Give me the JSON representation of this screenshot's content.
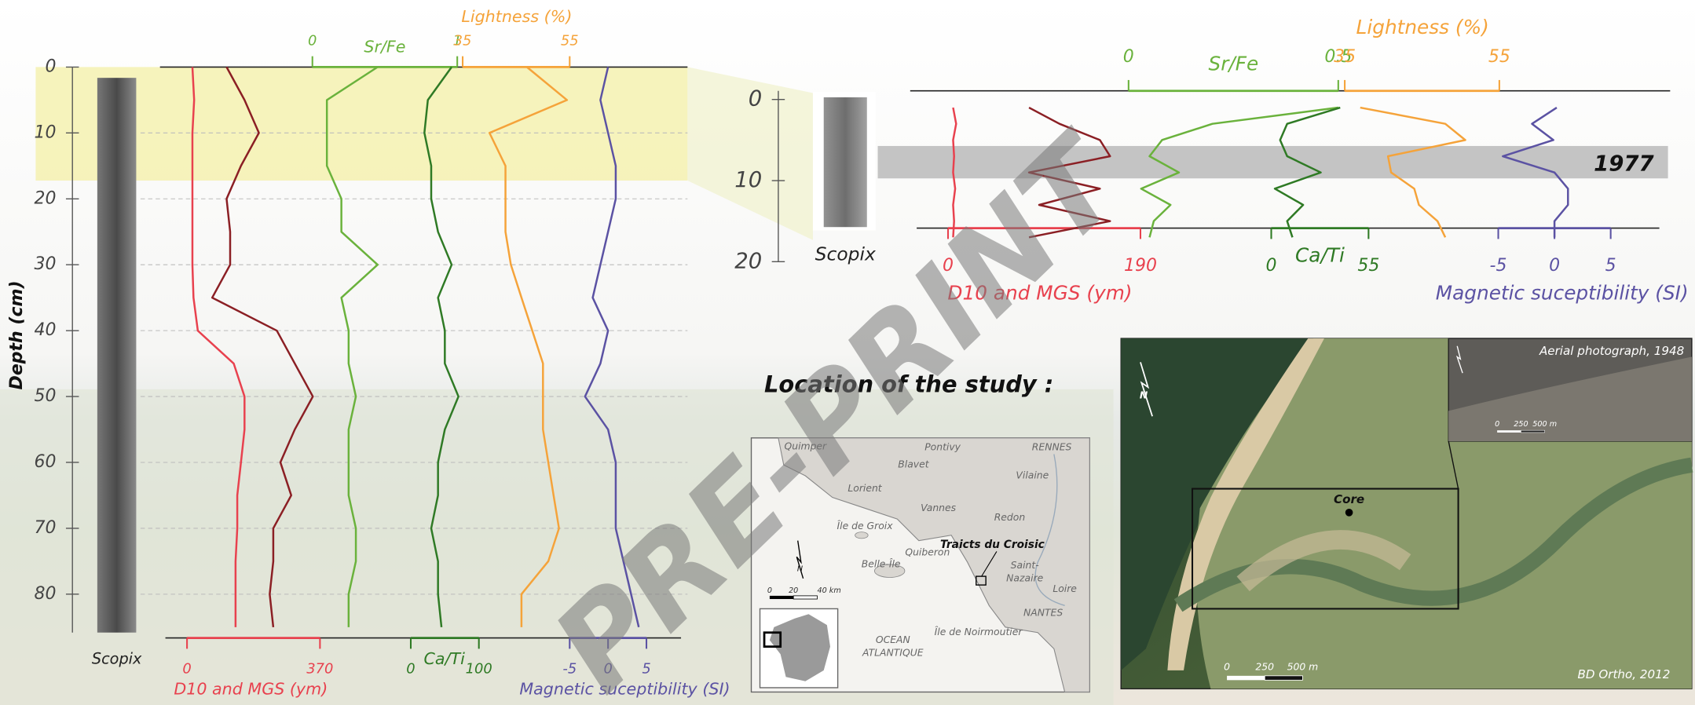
{
  "chart_data": [
    {
      "type": "line",
      "ylabel": "Depth (cm)",
      "image_label": "Scopix",
      "y_inverted": true,
      "grid": true,
      "y": [
        0,
        5,
        10,
        15,
        20,
        25,
        30,
        35,
        40,
        45,
        50,
        55,
        60,
        65,
        70,
        75,
        80,
        85
      ],
      "ylim": [
        0,
        85
      ],
      "yticks": [
        0,
        10,
        20,
        30,
        40,
        50,
        60,
        70,
        80
      ],
      "tracks": [
        {
          "label": "D10 and MGS (ym)",
          "axis": "bottom",
          "color": "#e8414e",
          "xlim": [
            0,
            370
          ],
          "xticks": [
            0,
            370
          ],
          "series": [
            {
              "color": "#e8414e",
              "values": [
                15,
                20,
                15,
                15,
                15,
                15,
                15,
                18,
                30,
                130,
                160,
                160,
                150,
                140,
                140,
                135,
                135,
                135
              ]
            },
            {
              "color": "#8b1f24",
              "values": [
                110,
                160,
                200,
                150,
                110,
                120,
                120,
                70,
                250,
                300,
                350,
                300,
                260,
                290,
                240,
                240,
                230,
                240
              ]
            }
          ]
        },
        {
          "label": "Sr/Fe",
          "axis": "top",
          "color": "#6ab23c",
          "xlim": [
            0,
            1
          ],
          "xticks": [
            0,
            1
          ],
          "series": [
            {
              "color": "#6ab23c",
              "values": [
                0.45,
                0.1,
                0.1,
                0.1,
                0.2,
                0.2,
                0.45,
                0.2,
                0.25,
                0.25,
                0.3,
                0.25,
                0.25,
                0.25,
                0.3,
                0.3,
                0.25,
                0.25
              ]
            }
          ]
        },
        {
          "label": "Ca/Ti",
          "axis": "bottom",
          "color": "#2f7a25",
          "xlim": [
            0,
            100
          ],
          "xticks": [
            0,
            100
          ],
          "series": [
            {
              "color": "#2f7a25",
              "values": [
                60,
                25,
                20,
                30,
                30,
                40,
                60,
                40,
                50,
                50,
                70,
                50,
                40,
                40,
                30,
                40,
                40,
                45
              ]
            }
          ]
        },
        {
          "label": "Lightness (%)",
          "axis": "top",
          "color": "#f5a33a",
          "xlim": [
            35,
            55
          ],
          "xticks": [
            35,
            55
          ],
          "series": [
            {
              "color": "#f5a33a",
              "values": [
                47,
                54.5,
                40,
                43,
                43,
                43,
                44,
                46,
                48,
                50,
                50,
                50,
                51,
                52,
                53,
                51,
                46,
                46
              ]
            }
          ]
        },
        {
          "label": "Magnetic suceptibility (SI)",
          "axis": "bottom",
          "color": "#5b52a3",
          "xlim": [
            -5,
            5
          ],
          "xticks": [
            -5,
            0,
            5
          ],
          "series": [
            {
              "color": "#5b52a3",
              "values": [
                0,
                -1,
                0,
                1,
                1,
                0,
                -1,
                -2,
                0,
                -1,
                -3,
                0,
                1,
                1,
                1,
                2,
                3,
                4
              ]
            }
          ]
        }
      ]
    },
    {
      "type": "line",
      "image_label": "Scopix",
      "highlight_label": "1977",
      "y_inverted": true,
      "grid": false,
      "y": [
        1,
        3,
        5,
        7,
        9,
        11,
        13,
        15,
        17
      ],
      "ylim": [
        0,
        20
      ],
      "yticks": [
        0,
        10,
        20
      ],
      "tracks": [
        {
          "label": "D10 and MGS (ym)",
          "axis": "bottom",
          "color": "#e8414e",
          "xlim": [
            0,
            190
          ],
          "xticks": [
            0,
            190
          ],
          "series": [
            {
              "color": "#e8414e",
              "values": [
                5,
                8,
                5,
                6,
                5,
                7,
                5,
                6,
                5
              ]
            },
            {
              "color": "#8b1f24",
              "values": [
                80,
                110,
                150,
                160,
                80,
                150,
                90,
                160,
                80
              ]
            }
          ]
        },
        {
          "label": "Sr/Fe",
          "axis": "top",
          "color": "#6ab23c",
          "xlim": [
            0,
            0.5
          ],
          "xticks": [
            0,
            0.5
          ],
          "series": [
            {
              "color": "#6ab23c",
              "values": [
                0.5,
                0.2,
                0.08,
                0.05,
                0.12,
                0.03,
                0.1,
                0.06,
                0.05
              ]
            }
          ]
        },
        {
          "label": "Ca/Ti",
          "axis": "bottom",
          "color": "#2f7a25",
          "xlim": [
            0,
            55
          ],
          "xticks": [
            0,
            55
          ],
          "series": [
            {
              "color": "#2f7a25",
              "values": [
                39,
                9,
                5,
                9,
                28,
                2,
                18,
                9,
                12
              ]
            }
          ]
        },
        {
          "label": "Lightness (%)",
          "axis": "top",
          "color": "#f5a33a",
          "xlim": [
            35,
            55
          ],
          "xticks": [
            35,
            55
          ],
          "series": [
            {
              "color": "#f5a33a",
              "values": [
                37,
                48,
                50.6,
                40.6,
                41,
                44,
                44.6,
                47,
                48
              ]
            }
          ]
        },
        {
          "label": "Magnetic suceptibility (SI)",
          "axis": "bottom",
          "color": "#5b52a3",
          "xlim": [
            -5,
            5
          ],
          "xticks": [
            -5,
            0,
            5
          ],
          "series": [
            {
              "color": "#5b52a3",
              "values": [
                0.2,
                -2,
                -0.1,
                -4.6,
                0,
                1.2,
                1.2,
                0,
                0
              ]
            }
          ]
        }
      ]
    }
  ],
  "watermark": "PRE-PRINT",
  "location": {
    "title": "Location of the study :",
    "map_labels": [
      "Quimper",
      "Pontivy",
      "RENNES",
      "Lorient",
      "Vannes",
      "Redon",
      "Blavet",
      "Vilaine",
      "Île de Groix",
      "Belle-Île",
      "Quiberon",
      "Traicts du Croisic",
      "Saint-",
      "Nazaire",
      "NANTES",
      "OCEAN",
      "ATLANTIQUE",
      "Île de Noirmoutier",
      "Loire"
    ],
    "scale_labels": [
      "0",
      "20",
      "40 km"
    ],
    "north": "N"
  },
  "aerial": {
    "inset_label": "Aerial photograph, 1948",
    "main_label": "BD Ortho, 2012",
    "core": "Core",
    "north": "N",
    "inset_scale": [
      "0",
      "250",
      "500 m"
    ],
    "main_scale": [
      "0",
      "250",
      "500 m"
    ]
  }
}
